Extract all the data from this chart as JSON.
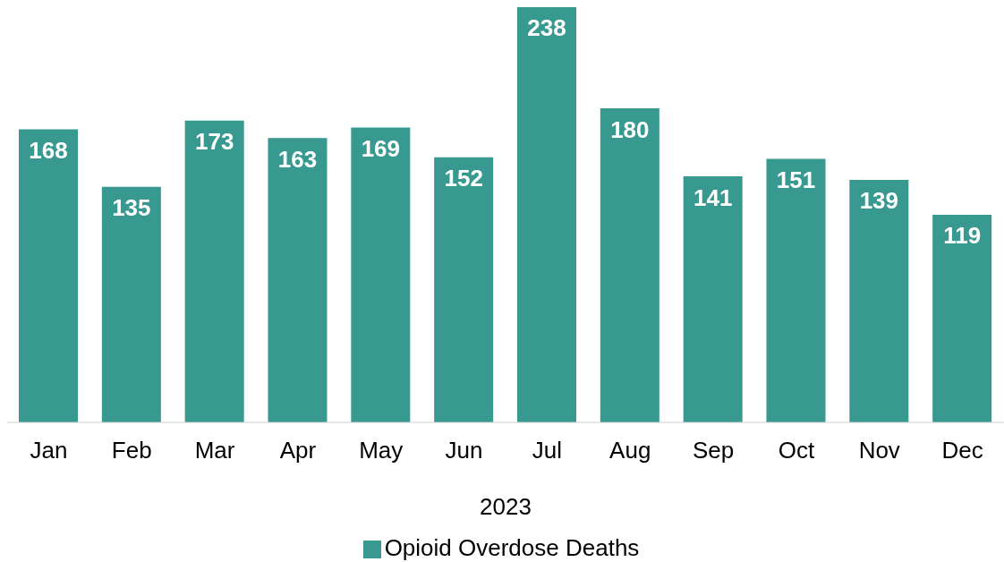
{
  "chart_data": {
    "type": "bar",
    "xlabel": "2023",
    "categories": [
      "Jan",
      "Feb",
      "Mar",
      "Apr",
      "May",
      "Jun",
      "Jul",
      "Aug",
      "Sep",
      "Oct",
      "Nov",
      "Dec"
    ],
    "series": [
      {
        "name": "Opioid Overdose Deaths",
        "color": "#379990",
        "values": [
          168,
          135,
          173,
          163,
          169,
          152,
          238,
          180,
          141,
          151,
          139,
          119
        ]
      }
    ],
    "data_labels": true,
    "legend": "bottom",
    "grid": false
  }
}
